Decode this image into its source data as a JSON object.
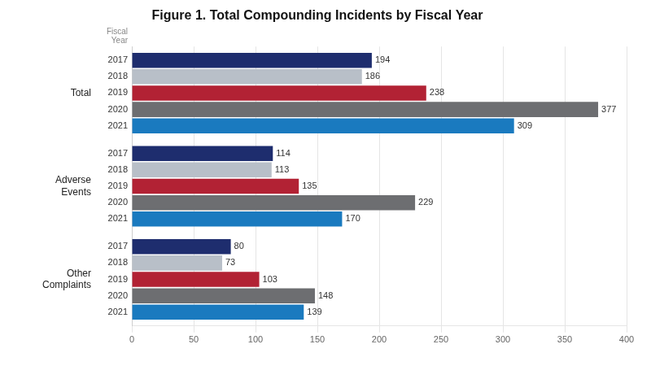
{
  "chart_data": {
    "type": "bar",
    "orientation": "horizontal",
    "title": "Figure 1. Total Compounding Incidents by Fiscal Year",
    "categories": [
      "Total",
      "Adverse\nEvents",
      "Other\nComplaints"
    ],
    "series": [
      {
        "name": "2017",
        "color": "#1e2d6e",
        "values": [
          194,
          114,
          80
        ]
      },
      {
        "name": "2018",
        "color": "#b8bfc8",
        "values": [
          186,
          113,
          73
        ]
      },
      {
        "name": "2019",
        "color": "#b22234",
        "values": [
          238,
          135,
          103
        ]
      },
      {
        "name": "2020",
        "color": "#6d6e71",
        "values": [
          377,
          229,
          148
        ]
      },
      {
        "name": "2021",
        "color": "#1a7abf",
        "values": [
          309,
          170,
          139
        ]
      }
    ],
    "annotations": [
      {
        "text": "Fiscal\nYear"
      }
    ],
    "xlim": [
      0,
      400
    ],
    "xticks": [
      0,
      50,
      100,
      150,
      200,
      250,
      300,
      350,
      400
    ],
    "grid": true,
    "data_labels": true
  }
}
